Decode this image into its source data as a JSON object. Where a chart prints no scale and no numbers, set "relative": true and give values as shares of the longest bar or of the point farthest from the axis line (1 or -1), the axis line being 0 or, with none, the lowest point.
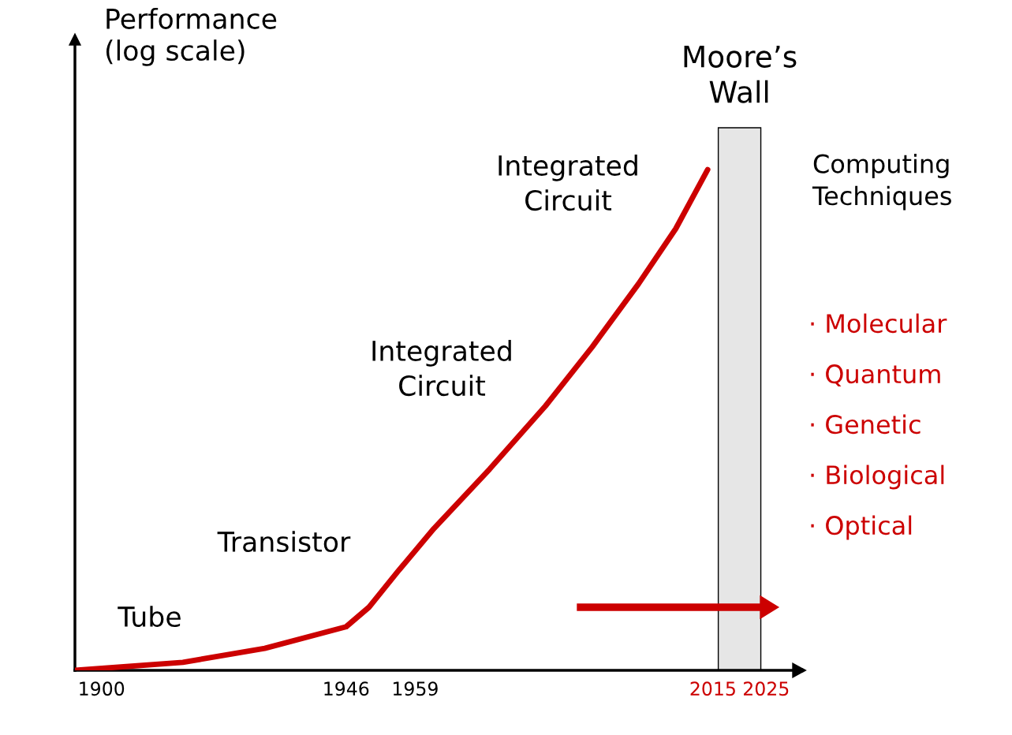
{
  "chart_data": {
    "type": "line",
    "relative": true,
    "ylabel": "Performance\n(log scale)",
    "xlim": [
      1895,
      2030
    ],
    "xticks": [
      1900,
      1946,
      1959,
      2015,
      2025
    ],
    "series": [
      {
        "color": "#cc0000",
        "x": [
          1895,
          1915.3,
          1930.7,
          1946,
          1950.3,
          1955.7,
          1962.5,
          1973,
          1983.5,
          1992.3,
          2001,
          2008,
          2014
        ],
        "values": [
          0,
          0.016,
          0.044,
          0.087,
          0.126,
          0.197,
          0.283,
          0.402,
          0.528,
          0.646,
          0.772,
          0.882,
          1
        ]
      }
    ],
    "bands": [
      {
        "axis": "x",
        "from": 2016,
        "to": 2024,
        "label": "Moore’s\nWall",
        "color": "#e6e6e6"
      }
    ],
    "annotations": [
      "Tube",
      "Transistor",
      "Integrated\nCircuit",
      "Integrated\nCircuit",
      "Computing\nTechniques",
      "· Molecular",
      "· Quantum",
      "· Genetic",
      "· Biological",
      "· Optical"
    ],
    "grid": false
  }
}
